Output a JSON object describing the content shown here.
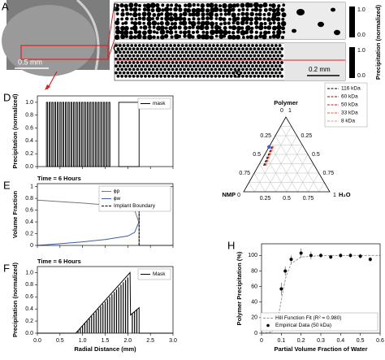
{
  "panels": {
    "A": {
      "label": "A",
      "scale": "0.5 mm"
    },
    "B": {
      "label": "B",
      "colorbar_top": "1.0",
      "colorbar_bottom": "0.0"
    },
    "C": {
      "label": "C",
      "scale": "0.2 mm",
      "colorbar_top": "1.0",
      "colorbar_bottom": "0.0"
    },
    "colorbar_label": "Precipitation (normalized)"
  },
  "chart_data": [
    {
      "type": "bar",
      "label": "D",
      "ylabel": "Precipitation (normalized)",
      "xlim": [
        0,
        3
      ],
      "ylim": [
        0,
        1.1
      ],
      "xticks": [
        0,
        0.5,
        1,
        1.5,
        2,
        2.5,
        3
      ],
      "xtick_labels": false,
      "yticks": [
        {
          "value": 0,
          "label": "0.0"
        },
        {
          "value": 0.2,
          "label": "0.2"
        },
        {
          "value": 0.4,
          "label": "0.4"
        },
        {
          "value": 0.6,
          "label": "0.6"
        },
        {
          "value": 0.8,
          "label": "0.8"
        },
        {
          "value": 1,
          "label": "1.0"
        }
      ],
      "legend": "upper right",
      "series": [
        {
          "name": "mask",
          "color": "#000000",
          "x_start": [
            0.2,
            0.26,
            0.32,
            0.38,
            0.44,
            0.5,
            0.56,
            0.62,
            0.68,
            0.74,
            0.8,
            0.86,
            0.92,
            0.98,
            1.04,
            1.1,
            1.16,
            1.22,
            1.28,
            1.34,
            1.4,
            1.46,
            1.52,
            1.58,
            1.8
          ],
          "x_end": [
            0.225,
            0.285,
            0.345,
            0.405,
            0.465,
            0.525,
            0.585,
            0.645,
            0.705,
            0.765,
            0.825,
            0.885,
            0.945,
            1.005,
            1.065,
            1.125,
            1.185,
            1.245,
            1.305,
            1.365,
            1.425,
            1.485,
            1.545,
            1.605,
            2.25
          ],
          "values": [
            1,
            1,
            1,
            1,
            1,
            1,
            1,
            1,
            1,
            1,
            1,
            1,
            1,
            1,
            1,
            1,
            1,
            1,
            1,
            1,
            1,
            1,
            1,
            1,
            1
          ]
        }
      ]
    },
    {
      "type": "line",
      "label": "E",
      "subtitle": "Time = 6 Hours",
      "ylabel": "Volume Fraction",
      "xlim": [
        0,
        3
      ],
      "ylim": [
        0,
        1.05
      ],
      "xticks": [
        0,
        0.5,
        1,
        1.5,
        2,
        2.5,
        3
      ],
      "xtick_labels": false,
      "yticks": [
        0,
        0.2,
        0.4,
        0.6,
        0.8,
        1
      ],
      "legend": "upper right",
      "series": [
        {
          "name": "ϕp",
          "color": "#777777",
          "x": [
            0,
            0.5,
            1,
            1.5,
            2,
            2.15,
            2.22,
            2.25,
            2.25,
            3
          ],
          "values": [
            0.77,
            0.745,
            0.72,
            0.69,
            0.65,
            0.6,
            0.45,
            0.38,
            0,
            0
          ]
        },
        {
          "name": "ϕw",
          "color": "#3a5fa8",
          "x": [
            0,
            0.5,
            1,
            1.5,
            2,
            2.15,
            2.22,
            2.25,
            2.25,
            3
          ],
          "values": [
            0,
            0.03,
            0.06,
            0.1,
            0.16,
            0.22,
            0.35,
            0.4,
            1,
            1
          ]
        },
        {
          "name": "Implant Boundary",
          "color": "#000000",
          "dash": true,
          "x": [
            2.25,
            2.25
          ],
          "values": [
            0,
            1
          ]
        }
      ]
    },
    {
      "type": "line",
      "label": "F",
      "subtitle": "Time = 6 Hours",
      "ylabel": "Precipitation (normalized)",
      "xlabel": "Radial Distance (mm)",
      "xlim": [
        0,
        3
      ],
      "ylim": [
        0,
        1.1
      ],
      "xticks": [
        {
          "value": 0,
          "label": "0.0"
        },
        {
          "value": 0.5,
          "label": "0.5"
        },
        {
          "value": 1,
          "label": "1.0"
        },
        {
          "value": 1.5,
          "label": "1.5"
        },
        {
          "value": 2,
          "label": "2.0"
        },
        {
          "value": 2.5,
          "label": "2.5"
        },
        {
          "value": 3,
          "label": "3.0"
        }
      ],
      "yticks": [
        {
          "value": 0,
          "label": "0.0"
        },
        {
          "value": 0.2,
          "label": "0.2"
        },
        {
          "value": 0.4,
          "label": "0.4"
        },
        {
          "value": 0.6,
          "label": "0.6"
        },
        {
          "value": 0.8,
          "label": "0.8"
        },
        {
          "value": 1,
          "label": "1.0"
        }
      ],
      "legend": "upper right",
      "series": [
        {
          "name": "Mask",
          "color": "#000000",
          "x": [
            0,
            0.85,
            2.05,
            2.06,
            2.25,
            2.25,
            3
          ],
          "values": [
            0,
            0,
            1,
            0.3,
            0.42,
            0,
            0
          ]
        }
      ],
      "spikes": {
        "color": "#000000",
        "x": [
          0.9,
          0.95,
          1,
          1.05,
          1.1,
          1.15,
          1.2,
          1.25,
          1.3,
          1.35,
          1.4,
          1.45,
          1.5,
          1.55,
          1.6,
          1.65,
          1.7,
          1.75,
          1.8,
          1.85,
          1.9,
          1.95,
          2,
          2.1,
          2.15,
          2.2
        ],
        "values": [
          0.04,
          0.08,
          0.12,
          0.16,
          0.2,
          0.24,
          0.28,
          0.32,
          0.36,
          0.4,
          0.44,
          0.48,
          0.52,
          0.56,
          0.6,
          0.64,
          0.68,
          0.72,
          0.76,
          0.8,
          0.84,
          0.88,
          0.92,
          0.33,
          0.36,
          0.39
        ]
      }
    },
    {
      "type": "ternary",
      "label": "G",
      "top_label": "Polymer",
      "left_label": "NMP",
      "right_label": "H₂O",
      "top_ticks": [
        0,
        1
      ],
      "left_corner_tick": 0,
      "right_corner_tick": 1,
      "left_ticks": [
        0.25,
        0.5,
        0.75
      ],
      "bottom_ticks": [
        0.25,
        0.5,
        0.75
      ],
      "right_ticks": [
        0.25,
        0.5,
        0.75
      ],
      "grid_divisions": 8,
      "legend": "upper right",
      "series": [
        {
          "name": "116 kDa",
          "color": "#000000",
          "polymer": [
            0.35,
            0.62
          ],
          "water": [
            0.06,
            0.03
          ]
        },
        {
          "name": "60 kDa",
          "color": "#7a1010",
          "polymer": [
            0.35,
            0.62
          ],
          "water": [
            0.07,
            0.035
          ]
        },
        {
          "name": "50 kDa",
          "color": "#c81e1e",
          "polymer": [
            0.35,
            0.62
          ],
          "water": [
            0.075,
            0.04
          ]
        },
        {
          "name": "33 kDa",
          "color": "#e0552a",
          "polymer": [
            0.35,
            0.62
          ],
          "water": [
            0.08,
            0.045
          ]
        },
        {
          "name": "8 kDa",
          "color": "#f08a8a",
          "polymer": [
            0.35,
            0.62
          ],
          "water": [
            0.09,
            0.05
          ]
        }
      ],
      "marker": {
        "color": "#3b5bdb",
        "polymer": 0.6,
        "water": 0
      }
    },
    {
      "type": "scatter",
      "label": "H",
      "ylabel": "Polymer Precipitation (%)",
      "xlabel": "Partial Volume Fraction of Water",
      "xlim": [
        0,
        0.6
      ],
      "ylim": [
        0,
        115
      ],
      "xticks": [
        0,
        0.1,
        0.2,
        0.3,
        0.4,
        0.5,
        0.6
      ],
      "yticks": [
        0,
        20,
        40,
        60,
        80,
        100
      ],
      "legend": "lower right",
      "series": [
        {
          "name": "Hill Function Fit (R² = 0.980)",
          "color": "#999999",
          "dash": true,
          "x": [
            0,
            0.05,
            0.075,
            0.09,
            0.1,
            0.11,
            0.125,
            0.15,
            0.2,
            0.3,
            0.6
          ],
          "values": [
            0,
            1.2,
            11.7,
            28.4,
            42.7,
            56.9,
            74,
            89.5,
            98,
            99.8,
            100
          ]
        },
        {
          "name": "Empirical Data (50 kDa)",
          "color": "#000000",
          "x": [
            0.08,
            0.1,
            0.12,
            0.15,
            0.2,
            0.25,
            0.3,
            0.35,
            0.4,
            0.45,
            0.5,
            0.55
          ],
          "values": [
            13,
            57,
            80,
            95,
            103,
            100,
            100,
            98,
            100,
            100,
            99,
            95
          ],
          "errors": [
            5,
            8,
            6,
            5,
            6,
            5,
            3,
            3,
            3,
            3,
            3,
            3
          ]
        }
      ]
    }
  ]
}
